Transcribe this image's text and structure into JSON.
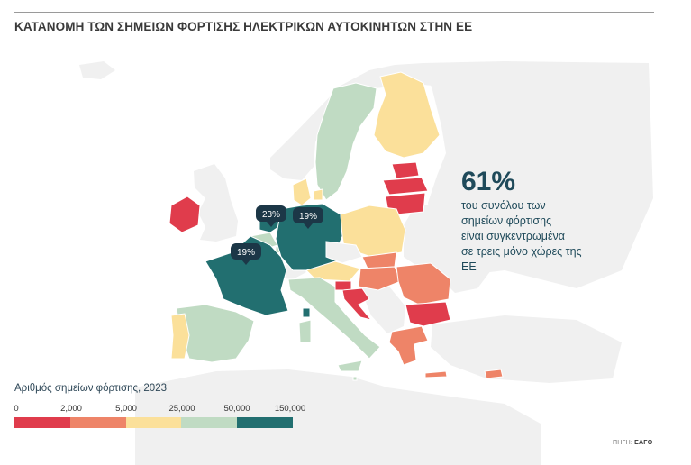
{
  "title": "ΚΑΤΑΝΟΜΗ ΤΩΝ ΣΗΜΕΙΩΝ ΦΟΡΤΙΣΗΣ ΗΛΕΚΤΡΙΚΩΝ ΑΥΤΟΚΙΝΗΤΩΝ ΣΤΗΝ ΕΕ",
  "stat": {
    "value": "61%",
    "text": "του συνόλου των\nσημείων φόρτισης\nείναι συγκεντρωμένα\nσε τρεις μόνο χώρες της\nΕΕ"
  },
  "callouts": [
    {
      "label": "23%"
    },
    {
      "label": "19%"
    },
    {
      "label": "19%"
    }
  ],
  "legend": {
    "title": "Αριθμός σημείων φόρτισης, 2023",
    "ticks": [
      "0",
      "2,000",
      "5,000",
      "25,000",
      "50,000",
      "150,000"
    ],
    "colors": [
      "#e03c4c",
      "#ee8468",
      "#fbe09a",
      "#c0dbc3",
      "#226f70"
    ]
  },
  "source": {
    "label": "ΠΗΓΗ:",
    "name": "EAFO"
  },
  "colors": {
    "non_eu": "#f0f0f0",
    "sea": "#ffffff",
    "border": "#ffffff",
    "callout_bg": "#1c3747"
  }
}
